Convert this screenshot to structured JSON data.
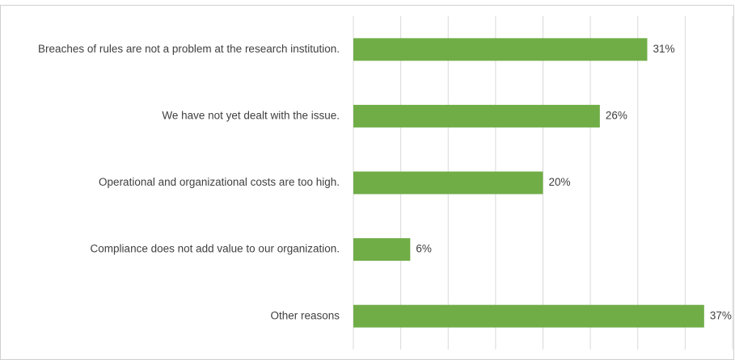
{
  "chart_data": {
    "type": "barh",
    "categories": [
      "Breaches of rules are not a problem at the research institution.",
      "We have not yet dealt with the issue.",
      "Operational and organizational costs are too high.",
      "Compliance does not add value to our organization.",
      "Other reasons"
    ],
    "values": [
      31,
      26,
      20,
      6,
      37
    ],
    "value_labels": [
      "31%",
      "26%",
      "20%",
      "6%",
      "37%"
    ],
    "color": "#70ad47",
    "xlim": [
      0,
      40
    ],
    "xticks": [
      0,
      5,
      10,
      15,
      20,
      25,
      30,
      35,
      40
    ],
    "grid": true
  }
}
